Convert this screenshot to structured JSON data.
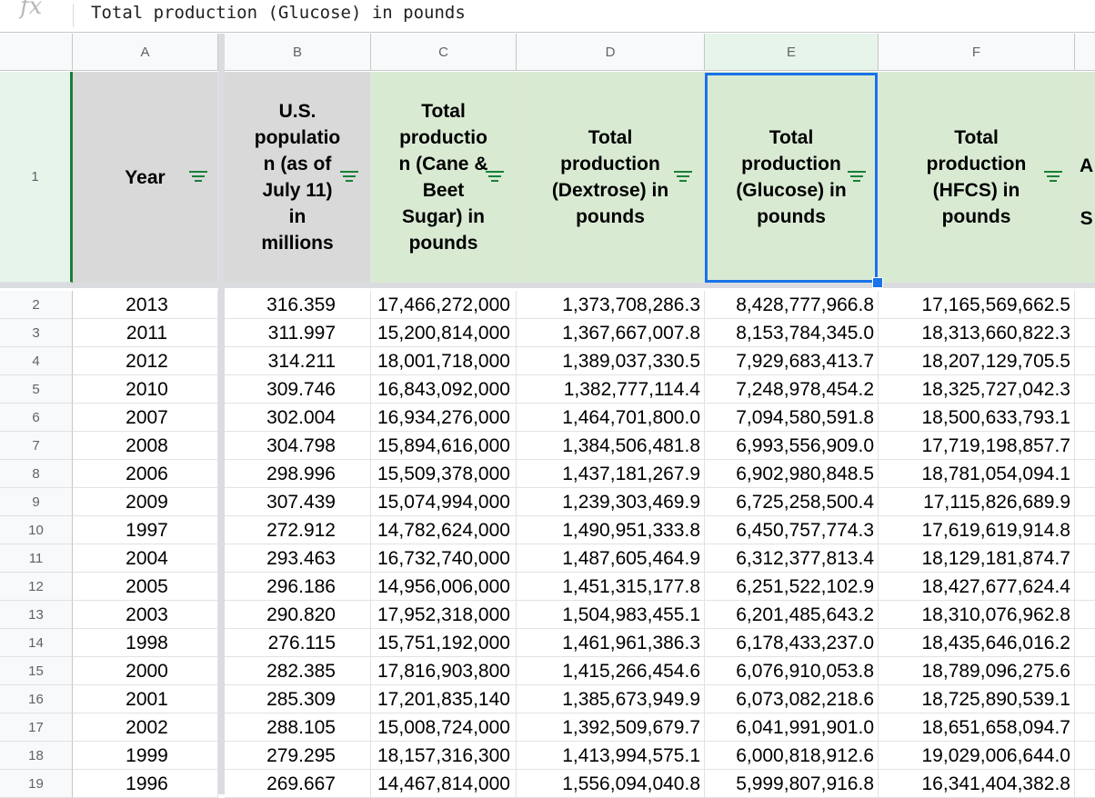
{
  "formula_bar": {
    "fx_label": "fx",
    "value": "Total production (Glucose) in pounds"
  },
  "columns": [
    "A",
    "B",
    "C",
    "D",
    "E",
    "F"
  ],
  "headers": [
    "Year",
    "U.S. populatio n (as of July 11) in millions",
    "Total productio n (Cane & Beet Sugar) in pounds",
    "Total production (Dextrose) in pounds",
    "Total production (Glucose) in pounds",
    "Total production (HFCS) in pounds",
    "A S"
  ],
  "header_lines": [
    [
      "Year"
    ],
    [
      "U.S.",
      "populatio",
      "n (as of",
      "July 11)",
      "in",
      "millions"
    ],
    [
      "Total",
      "productio",
      "n (Cane &",
      "Beet",
      "Sugar) in",
      "pounds"
    ],
    [
      "Total",
      "production",
      "(Dextrose) in",
      "pounds"
    ],
    [
      "Total",
      "production",
      "(Glucose) in",
      "pounds"
    ],
    [
      "Total",
      "production",
      "(HFCS) in",
      "pounds"
    ],
    [
      "A",
      "S"
    ]
  ],
  "row_numbers": [
    "1",
    "2",
    "3",
    "4",
    "5",
    "6",
    "7",
    "8",
    "9",
    "10",
    "11",
    "12",
    "13",
    "14",
    "15",
    "16",
    "17",
    "18",
    "19"
  ],
  "rows": [
    [
      "2013",
      "316.359",
      "17,466,272,000",
      "1,373,708,286.3",
      "8,428,777,966.8",
      "17,165,569,662.5"
    ],
    [
      "2011",
      "311.997",
      "15,200,814,000",
      "1,367,667,007.8",
      "8,153,784,345.0",
      "18,313,660,822.3"
    ],
    [
      "2012",
      "314.211",
      "18,001,718,000",
      "1,389,037,330.5",
      "7,929,683,413.7",
      "18,207,129,705.5"
    ],
    [
      "2010",
      "309.746",
      "16,843,092,000",
      "1,382,777,114.4",
      "7,248,978,454.2",
      "18,325,727,042.3"
    ],
    [
      "2007",
      "302.004",
      "16,934,276,000",
      "1,464,701,800.0",
      "7,094,580,591.8",
      "18,500,633,793.1"
    ],
    [
      "2008",
      "304.798",
      "15,894,616,000",
      "1,384,506,481.8",
      "6,993,556,909.0",
      "17,719,198,857.7"
    ],
    [
      "2006",
      "298.996",
      "15,509,378,000",
      "1,437,181,267.9",
      "6,902,980,848.5",
      "18,781,054,094.1"
    ],
    [
      "2009",
      "307.439",
      "15,074,994,000",
      "1,239,303,469.9",
      "6,725,258,500.4",
      "17,115,826,689.9"
    ],
    [
      "1997",
      "272.912",
      "14,782,624,000",
      "1,490,951,333.8",
      "6,450,757,774.3",
      "17,619,619,914.8"
    ],
    [
      "2004",
      "293.463",
      "16,732,740,000",
      "1,487,605,464.9",
      "6,312,377,813.4",
      "18,129,181,874.7"
    ],
    [
      "2005",
      "296.186",
      "14,956,006,000",
      "1,451,315,177.8",
      "6,251,522,102.9",
      "18,427,677,624.4"
    ],
    [
      "2003",
      "290.820",
      "17,952,318,000",
      "1,504,983,455.1",
      "6,201,485,643.2",
      "18,310,076,962.8"
    ],
    [
      "1998",
      "276.115",
      "15,751,192,000",
      "1,461,961,386.3",
      "6,178,433,237.0",
      "18,435,646,016.2"
    ],
    [
      "2000",
      "282.385",
      "17,816,903,800",
      "1,415,266,454.6",
      "6,076,910,053.8",
      "18,789,096,275.6"
    ],
    [
      "2001",
      "285.309",
      "17,201,835,140",
      "1,385,673,949.9",
      "6,073,082,218.6",
      "18,725,890,539.1"
    ],
    [
      "2002",
      "288.105",
      "15,008,724,000",
      "1,392,509,679.7",
      "6,041,991,901.0",
      "18,651,658,094.7"
    ],
    [
      "1999",
      "279.295",
      "18,157,316,300",
      "1,413,994,575.1",
      "6,000,818,912.6",
      "19,029,006,644.0"
    ],
    [
      "1996",
      "269.667",
      "14,467,814,000",
      "1,556,094,040.8",
      "5,999,807,916.8",
      "16,341,404,382.8"
    ]
  ],
  "colors": {
    "header_green": "#d9ead3",
    "header_grey": "#d9d9d9",
    "selection_blue": "#1a73e8",
    "filter_green": "#188038"
  }
}
